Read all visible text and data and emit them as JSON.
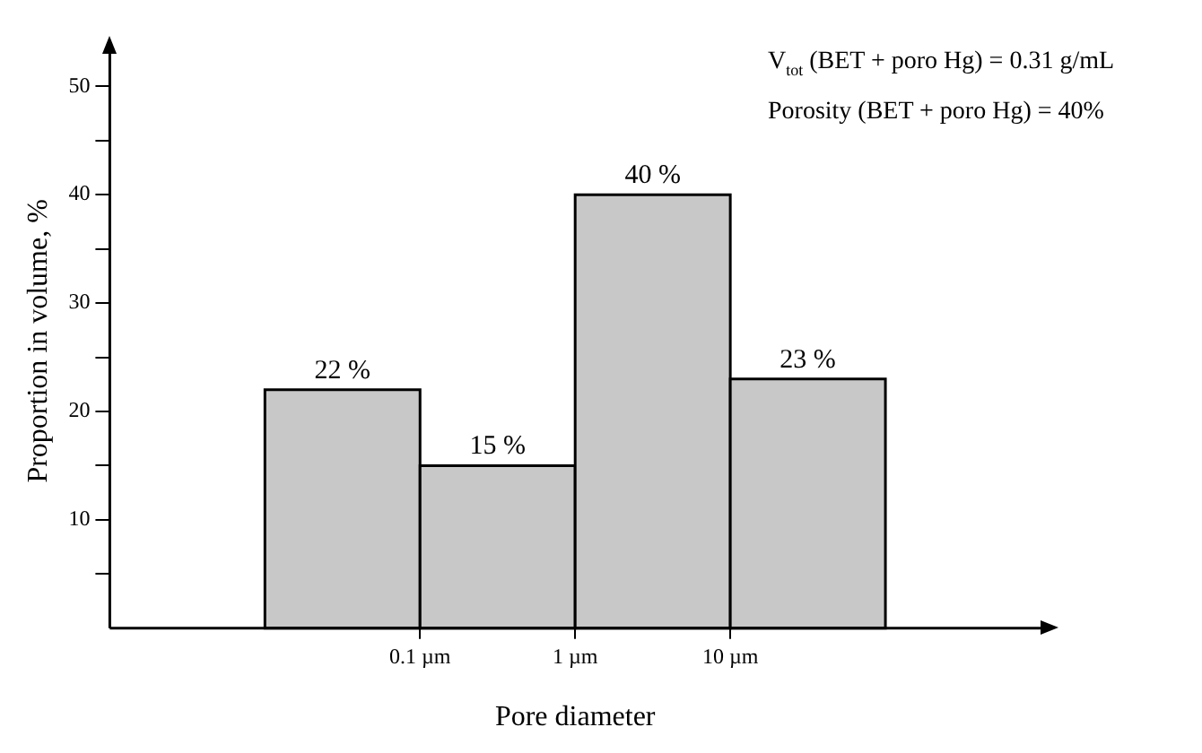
{
  "chart_data": {
    "type": "histogram",
    "xlabel": "Pore diameter",
    "ylabel": "Proportion in volume, %",
    "bins": [
      0.01,
      0.1,
      1,
      10,
      100
    ],
    "values": [
      22,
      15,
      40,
      23
    ],
    "value_labels": [
      "22 %",
      "15 %",
      "40 %",
      "23 %"
    ],
    "color": "#c8c8c8",
    "log": "x",
    "xlim": [
      0.001,
      1000
    ],
    "xticks": [
      {
        "value": 0.1,
        "label": "0.1 µm"
      },
      {
        "value": 1,
        "label": "1 µm"
      },
      {
        "value": 10,
        "label": "10 µm"
      }
    ],
    "ylim": [
      0,
      53
    ],
    "yticks": [
      {
        "value": 5,
        "label": null
      },
      10,
      {
        "value": 15,
        "label": null
      },
      20,
      {
        "value": 25,
        "label": null
      },
      30,
      {
        "value": 35,
        "label": null
      },
      40,
      {
        "value": 45,
        "label": null
      },
      50
    ],
    "grid": false,
    "legend": false,
    "annotations": [
      "V$_{tot}$ (BET + poro Hg) = 0.31 g/mL",
      "Porosity (BET + poro Hg) = 40%"
    ]
  }
}
